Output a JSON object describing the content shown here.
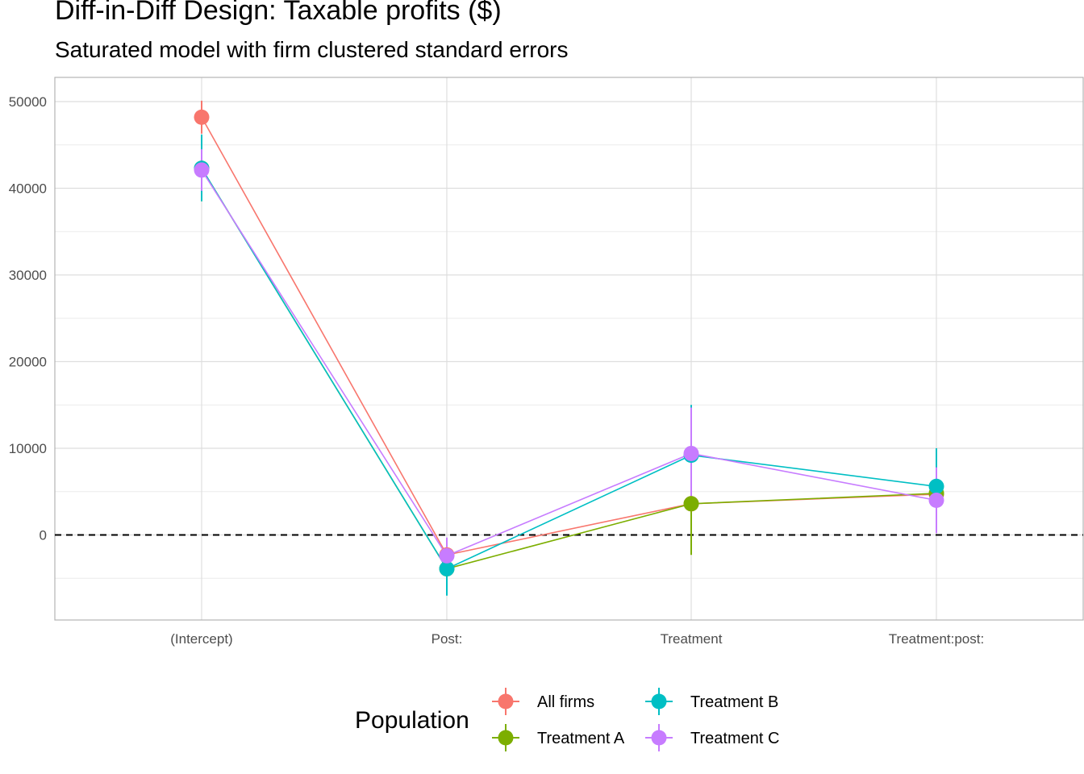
{
  "chart_data": {
    "type": "scatter",
    "title": "Diff-in-Diff Design: Taxable profits  ($)",
    "subtitle": "Saturated model with firm clustered standard errors",
    "categories": [
      "(Intercept)",
      "Post:",
      "Treatment",
      "Treatment:post:"
    ],
    "y_ticks": [
      0,
      10000,
      20000,
      30000,
      40000,
      50000
    ],
    "ylim": [
      -10000,
      53000
    ],
    "grid": true,
    "reference_line": {
      "y": 0,
      "style": "dashed"
    },
    "legend": {
      "title": "Population",
      "placement": "bottom"
    },
    "series": [
      {
        "name": "All firms",
        "color": "#F8766D",
        "values": [
          48200,
          -2300,
          3600,
          4700
        ],
        "lower": [
          46300,
          -3400,
          -2200,
          3300
        ],
        "upper": [
          50100,
          -1200,
          9400,
          6100
        ]
      },
      {
        "name": "Treatment A",
        "color": "#7CAE00",
        "values": [
          42300,
          -3900,
          3600,
          4800
        ],
        "lower": [
          38500,
          -6800,
          -2300,
          4200
        ],
        "upper": [
          46100,
          -1000,
          9500,
          5400
        ]
      },
      {
        "name": "Treatment B",
        "color": "#00BFC4",
        "values": [
          42300,
          -3900,
          9200,
          5600
        ],
        "lower": [
          38500,
          -7000,
          3400,
          1200
        ],
        "upper": [
          46200,
          -800,
          15000,
          10000
        ]
      },
      {
        "name": "Treatment C",
        "color": "#C77CFF",
        "values": [
          42100,
          -2400,
          9400,
          4000
        ],
        "lower": [
          39700,
          -4500,
          4100,
          200
        ],
        "upper": [
          44500,
          -300,
          14700,
          7800
        ]
      }
    ]
  }
}
